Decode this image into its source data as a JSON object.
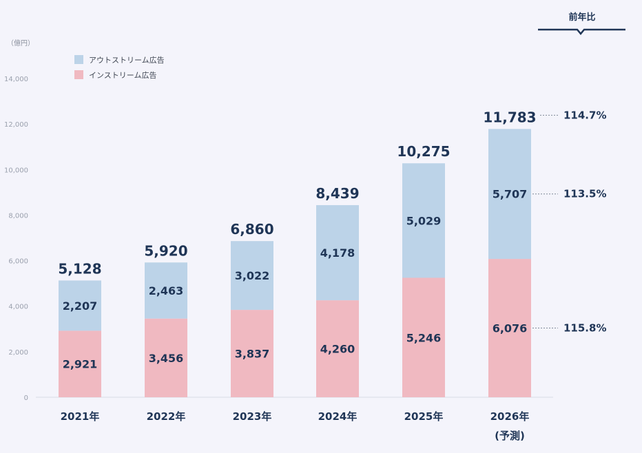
{
  "chart_data": {
    "type": "bar",
    "stacked": true,
    "unit_label": "（億円）",
    "categories": [
      "2021年",
      "2022年",
      "2023年",
      "2024年",
      "2025年",
      "2026年"
    ],
    "category_notes": [
      "",
      "",
      "",
      "",
      "",
      "(予測)"
    ],
    "series": [
      {
        "name": "インストリーム広告",
        "values": [
          2921,
          3456,
          3837,
          4260,
          5246,
          6076
        ],
        "color": "#f0b9c1"
      },
      {
        "name": "アウトストリーム広告",
        "values": [
          2207,
          2463,
          3022,
          4178,
          5029,
          5707
        ],
        "color": "#bcd3e8"
      }
    ],
    "totals": [
      5128,
      5920,
      6860,
      8439,
      10275,
      11783
    ],
    "ylim": [
      0,
      14000
    ],
    "yticks": [
      0,
      2000,
      4000,
      6000,
      8000,
      10000,
      12000,
      14000
    ],
    "grid": false,
    "legend": "top-left",
    "yoy": {
      "title": "前年比",
      "total": "114.7%",
      "outstream": "113.5%",
      "instream": "115.8%"
    }
  }
}
